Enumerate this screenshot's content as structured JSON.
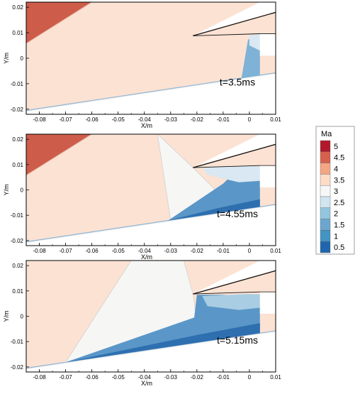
{
  "chart_data": {
    "type": "heatmap",
    "legend": {
      "title": "Ma",
      "levels": [
        "5",
        "4.5",
        "4",
        "3.5",
        "3",
        "2.5",
        "2",
        "1.5",
        "1",
        "0.5"
      ],
      "colors": [
        "#b2182b",
        "#d6604d",
        "#f4a582",
        "#fddbc7",
        "#f7f7f7",
        "#d1e5f0",
        "#92c5de",
        "#6ba6cf",
        "#4393c3",
        "#2166ac"
      ],
      "placement": "right"
    },
    "panels": [
      {
        "time_label": "t=3.5ms",
        "xlabel": "X/m",
        "ylabel": "Y/m",
        "xlim": [
          -0.085,
          0.01
        ],
        "ylim": [
          -0.022,
          0.022
        ],
        "xticks": [
          "-0.08",
          "-0.07",
          "-0.06",
          "-0.05",
          "-0.04",
          "-0.03",
          "-0.02",
          "-0.01",
          "0",
          "0.01"
        ],
        "yticks": [
          "0.02",
          "0.01",
          "0",
          "-0.01",
          "-0.02"
        ],
        "shock_foot_x": -0.001
      },
      {
        "time_label": "t=4.55ms",
        "xlabel": "X/m",
        "ylabel": "Y/m",
        "xlim": [
          -0.085,
          0.01
        ],
        "ylim": [
          -0.022,
          0.022
        ],
        "xticks": [
          "-0.08",
          "-0.07",
          "-0.06",
          "-0.05",
          "-0.04",
          "-0.03",
          "-0.02",
          "-0.01",
          "0",
          "0.01"
        ],
        "yticks": [
          "0.02",
          "0.01",
          "0",
          "-0.01",
          "-0.02"
        ],
        "shock_foot_x": -0.031
      },
      {
        "time_label": "t=5.15ms",
        "xlabel": "X/m",
        "ylabel": "Y/m",
        "xlim": [
          -0.085,
          0.01
        ],
        "ylim": [
          -0.022,
          0.022
        ],
        "xticks": [
          "-0.08",
          "-0.07",
          "-0.06",
          "-0.05",
          "-0.04",
          "-0.03",
          "-0.02",
          "-0.01",
          "0",
          "0.01"
        ],
        "yticks": [
          "0.02",
          "0.01",
          "0",
          "-0.01",
          "-0.02"
        ],
        "shock_foot_x": -0.07
      }
    ]
  }
}
